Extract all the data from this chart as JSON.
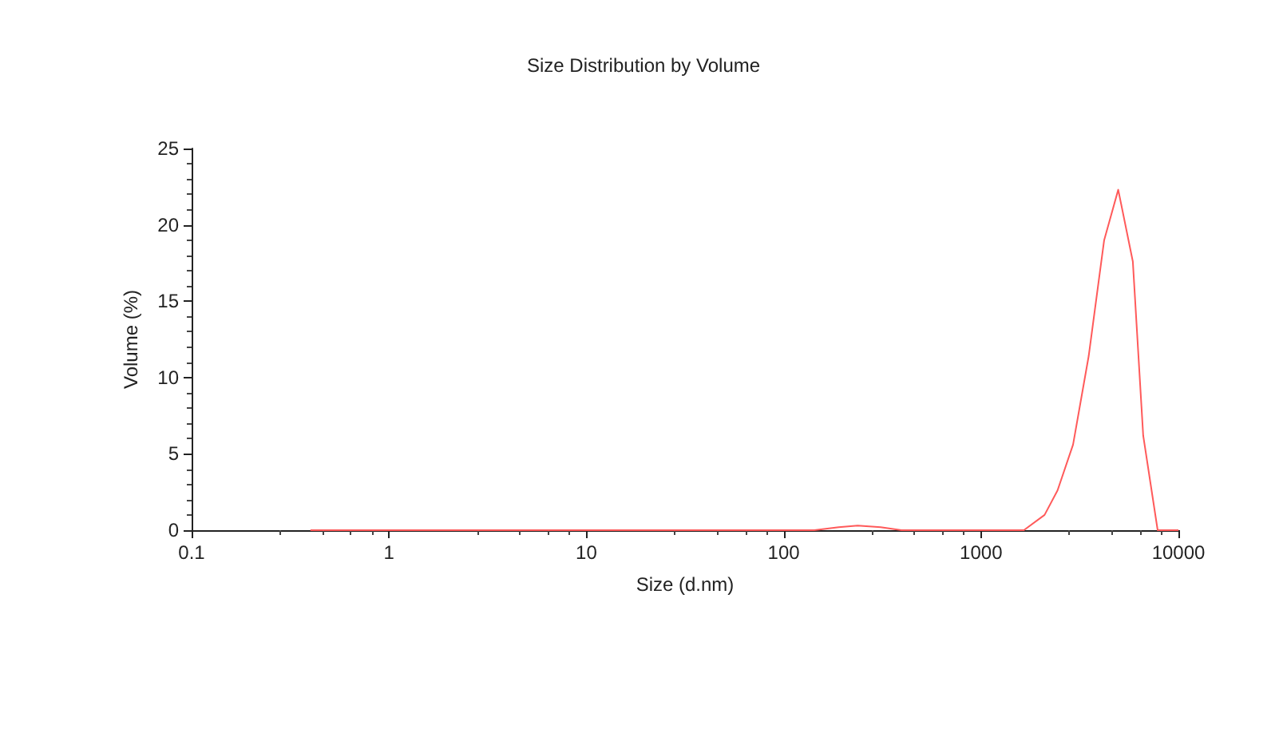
{
  "chart_data": {
    "type": "line",
    "title": "Size Distribution by Volume",
    "xlabel": "Size (d.nm)",
    "ylabel": "Volume (%)",
    "log": "x",
    "xlim": [
      0.1,
      10000
    ],
    "xticks": [
      0.1,
      1,
      10,
      100,
      1000,
      10000
    ],
    "ylim": [
      0,
      25
    ],
    "yticks": [
      0,
      5,
      10,
      15,
      20,
      25
    ],
    "grid": false,
    "marker": "none",
    "series": [
      {
        "color": "#ff5a5a",
        "x": [
          0.4,
          143,
          190,
          237,
          310,
          395,
          1648,
          2098,
          2440,
          2925,
          3510,
          4205,
          4955,
          5875,
          6630,
          7850,
          10000
        ],
        "values": [
          0,
          0,
          0.2,
          0.3,
          0.2,
          0,
          0,
          1.0,
          2.6,
          5.6,
          11.4,
          19.0,
          22.3,
          17.6,
          6.2,
          0,
          0
        ]
      }
    ]
  }
}
